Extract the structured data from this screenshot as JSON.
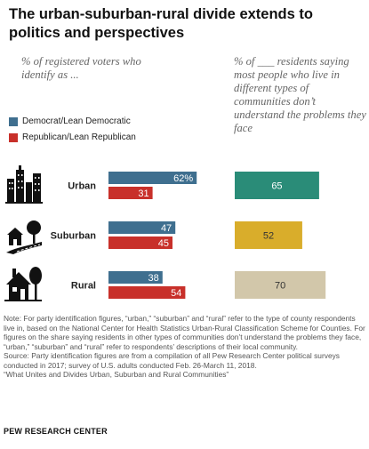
{
  "title": "The urban-suburban-rural  divide extends to politics and perspectives",
  "subtitle_left": "% of registered voters who identify as ...",
  "subtitle_right": "% of ___ residents saying most people who live in different types of communities don’t understand the problems they face",
  "legend": [
    {
      "label": "Democrat/Lean Democratic",
      "color": "#3f6f8f"
    },
    {
      "label": "Republican/Lean Republican",
      "color": "#c8302a"
    }
  ],
  "icons": [
    "city-skyline-icon",
    "suburban-road-icon",
    "rural-house-icon"
  ],
  "chart_data": [
    {
      "type": "bar",
      "orientation": "horizontal",
      "categories": [
        "Urban",
        "Suburban",
        "Rural"
      ],
      "series": [
        {
          "name": "Democrat/Lean Democratic",
          "values": [
            62,
            47,
            38
          ],
          "labels": [
            "62%",
            "47",
            "38"
          ],
          "color": "#3f6f8f"
        },
        {
          "name": "Republican/Lean Republican",
          "values": [
            31,
            45,
            54
          ],
          "labels": [
            "31",
            "45",
            "54"
          ],
          "color": "#c8302a"
        }
      ],
      "xlim": [
        0,
        100
      ]
    },
    {
      "type": "bar",
      "orientation": "horizontal",
      "categories": [
        "Urban",
        "Suburban",
        "Rural"
      ],
      "series": [
        {
          "values": [
            65,
            52,
            70
          ],
          "labels": [
            "65",
            "52",
            "70"
          ],
          "colors": [
            "#2a8c78",
            "#d9ad2b",
            "#d2c7aa"
          ]
        }
      ],
      "xlim": [
        0,
        100
      ]
    }
  ],
  "notes": [
    "Note: For party identification figures, “urban,” “suburban” and “rural” refer to the type of county respondents live in, based on the National Center for Health Statistics Urban-Rural Classification Scheme for Counties. For figures on the share saying residents in other types of communities don’t understand the problems they face, “urban,” “suburban” and “rural” refer to respondents’ descriptions of their local community.",
    "Source: Party identification figures are from a compilation of all Pew Research Center political surveys conducted in 2017; survey of U.S. adults conducted Feb. 26-March 11, 2018.",
    "“What Unites and Divides Urban, Suburban and Rural Communities”"
  ],
  "source_org": "PEW RESEARCH CENTER"
}
